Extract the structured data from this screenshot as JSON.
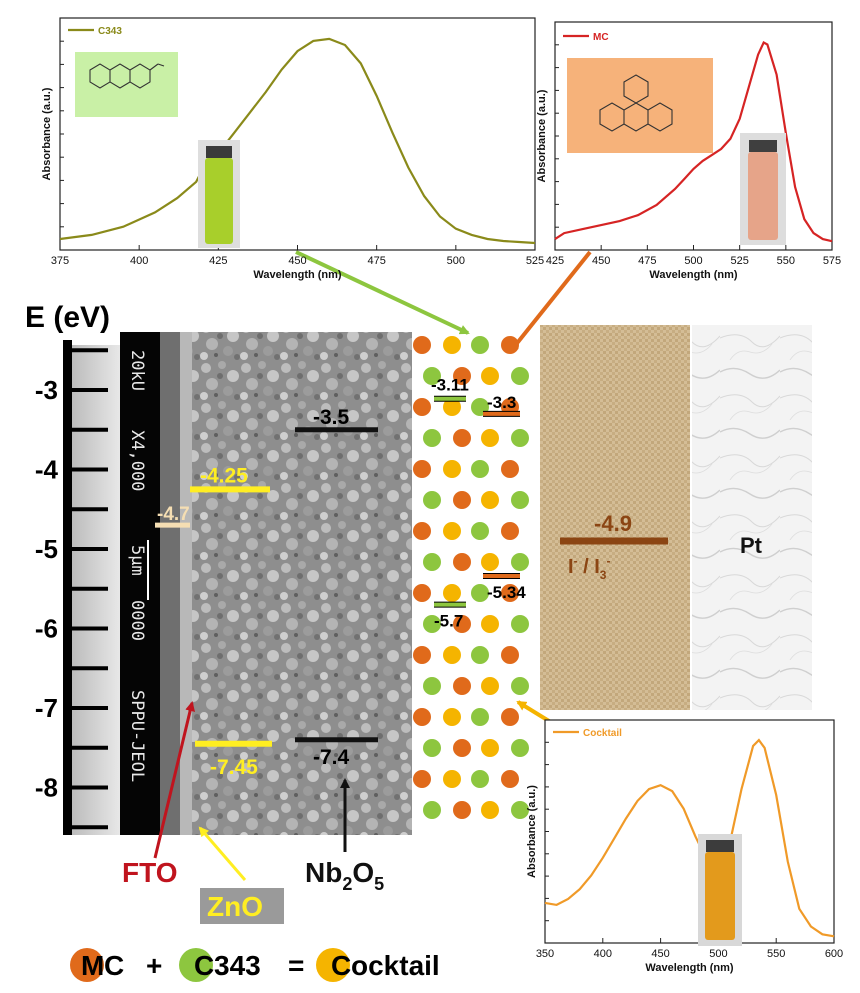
{
  "energy_axis": {
    "title": "E (eV)",
    "ticks": [
      -3,
      -4,
      -5,
      -6,
      -7,
      -8
    ],
    "range": [
      -8.5,
      -2.5
    ]
  },
  "sem": {
    "lines": [
      "20kU",
      "X4,000",
      "5µm",
      "0000",
      "SPPU-JEOL"
    ]
  },
  "levels": {
    "fto": {
      "value": -4.7,
      "label": "-4.7",
      "color": "#f5deb3"
    },
    "zno_cb": {
      "value": -4.25,
      "label": "-4.25",
      "color": "#ffee22"
    },
    "zno_vb": {
      "value": -7.45,
      "label": "-7.45",
      "color": "#ffee22"
    },
    "nb_cb": {
      "value": -3.5,
      "label": "-3.5",
      "color": "#111111"
    },
    "nb_vb": {
      "value": -7.4,
      "label": "-7.4",
      "color": "#111111"
    },
    "c343_lumo": {
      "value": -3.11,
      "label": "-3.11",
      "color": "#8dc63f"
    },
    "mc_lumo": {
      "value": -3.3,
      "label": "-3.3",
      "color": "#e06a1b"
    },
    "mc_homo": {
      "value": -5.34,
      "label": "-5.34",
      "color": "#e06a1b"
    },
    "c343_homo": {
      "value": -5.7,
      "label": "-5.7",
      "color": "#8dc63f"
    },
    "redox": {
      "value": -4.9,
      "label": "-4.9",
      "color": "#8b4513"
    }
  },
  "material_labels": {
    "fto": "FTO",
    "zno": "ZnO",
    "nb_main": "Nb",
    "nb_sub1": "2",
    "nb_mid": "O",
    "nb_sub2": "5",
    "pt": "Pt",
    "redox_i": "I",
    "redox_sup": "-",
    "redox_sep": " / I",
    "redox_sub": "3",
    "redox_sup2": "-"
  },
  "colors": {
    "mc": "#e06a1b",
    "c343": "#8dc63f",
    "cocktail": "#f5b400",
    "fto_arrow": "#c0141e",
    "zno_arrow": "#ffee22",
    "line_c343": "#8a8a1a",
    "line_mc": "#d62424",
    "line_cocktail": "#f09a28"
  },
  "legend": {
    "mc_letter": "M",
    "mc_rest": "C",
    "plus": "+",
    "c343_letter": "C",
    "c343_rest": "343",
    "equals": "=",
    "cocktail_letter": "C",
    "cocktail_rest": "ocktail"
  },
  "chart_data": [
    {
      "type": "line",
      "title": "",
      "xlabel": "Wavelength (nm)",
      "ylabel": "Absorbance (a.u.)",
      "xlim": [
        375,
        525
      ],
      "xticks": [
        375,
        400,
        425,
        450,
        475,
        500,
        525
      ],
      "ylim": [
        0,
        1
      ],
      "series": [
        {
          "name": "C343",
          "x": [
            375,
            385,
            395,
            405,
            412,
            418,
            419,
            420,
            425,
            430,
            435,
            440,
            445,
            450,
            455,
            460,
            465,
            470,
            475,
            480,
            485,
            490,
            495,
            500,
            505,
            510,
            515,
            520,
            525
          ],
          "y": [
            0.02,
            0.04,
            0.08,
            0.15,
            0.22,
            0.3,
            0.33,
            0.36,
            0.44,
            0.54,
            0.64,
            0.74,
            0.85,
            0.94,
            0.99,
            1.0,
            0.97,
            0.88,
            0.72,
            0.54,
            0.37,
            0.23,
            0.13,
            0.07,
            0.04,
            0.02,
            0.01,
            0.005,
            0.0
          ]
        }
      ]
    },
    {
      "type": "line",
      "title": "",
      "xlabel": "Wavelength (nm)",
      "ylabel": "Absorbance (a.u.)",
      "xlim": [
        425,
        575
      ],
      "xticks": [
        425,
        450,
        475,
        500,
        525,
        550,
        575
      ],
      "ylim": [
        0,
        1
      ],
      "series": [
        {
          "name": "MC",
          "x": [
            425,
            430,
            440,
            450,
            460,
            470,
            480,
            490,
            495,
            500,
            505,
            510,
            515,
            520,
            525,
            530,
            535,
            538,
            540,
            545,
            550,
            555,
            560,
            565,
            570,
            575
          ],
          "y": [
            0.02,
            0.05,
            0.07,
            0.09,
            0.11,
            0.14,
            0.19,
            0.27,
            0.32,
            0.37,
            0.41,
            0.44,
            0.47,
            0.52,
            0.62,
            0.78,
            0.94,
            1.0,
            0.99,
            0.84,
            0.55,
            0.28,
            0.12,
            0.05,
            0.02,
            0.01
          ]
        }
      ]
    },
    {
      "type": "line",
      "title": "",
      "xlabel": "Wavelength (nm)",
      "ylabel": "Absorbance (a.u.)",
      "xlim": [
        350,
        600
      ],
      "xticks": [
        350,
        400,
        450,
        500,
        550,
        600
      ],
      "ylim": [
        0,
        1
      ],
      "series": [
        {
          "name": "Cocktail",
          "x": [
            350,
            360,
            370,
            380,
            390,
            400,
            410,
            420,
            430,
            440,
            450,
            460,
            470,
            480,
            490,
            495,
            500,
            510,
            520,
            530,
            535,
            540,
            550,
            560,
            570,
            580,
            590,
            600
          ],
          "y": [
            0.17,
            0.16,
            0.19,
            0.24,
            0.31,
            0.4,
            0.5,
            0.6,
            0.69,
            0.75,
            0.77,
            0.74,
            0.65,
            0.51,
            0.39,
            0.36,
            0.37,
            0.48,
            0.75,
            0.97,
            1.0,
            0.96,
            0.72,
            0.38,
            0.14,
            0.05,
            0.01,
            0.0
          ]
        }
      ]
    }
  ]
}
